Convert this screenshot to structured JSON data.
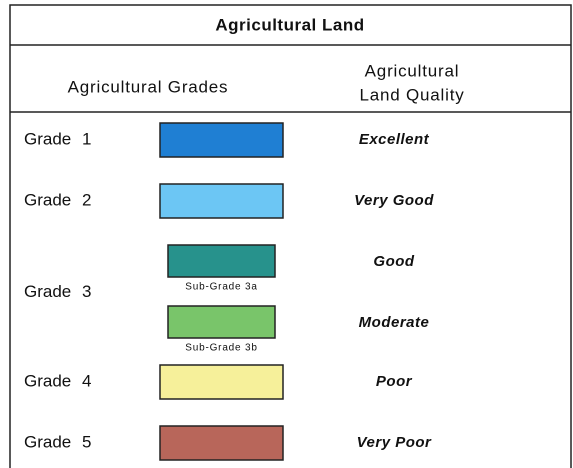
{
  "title": "Agricultural Land",
  "headers": [
    "Agricultural Grades",
    "Agricultural",
    "Land Quality"
  ],
  "rows": [
    {
      "grade": "Grade 1",
      "items": [
        {
          "color": "#1f7fd3",
          "quality": "Excellent"
        }
      ]
    },
    {
      "grade": "Grade 2",
      "items": [
        {
          "color": "#6cc6f4",
          "quality": "Very Good"
        }
      ]
    },
    {
      "grade": "Grade 3",
      "items": [
        {
          "color": "#27928c",
          "label": "Sub-Grade 3a",
          "quality": "Good"
        },
        {
          "color": "#79c56a",
          "label": "Sub-Grade 3b",
          "quality": "Moderate"
        }
      ]
    },
    {
      "grade": "Grade 4",
      "items": [
        {
          "color": "#f6f09a",
          "quality": "Poor"
        }
      ]
    },
    {
      "grade": "Grade 5",
      "items": [
        {
          "color": "#b8665a",
          "quality": "Very Poor"
        }
      ]
    }
  ]
}
